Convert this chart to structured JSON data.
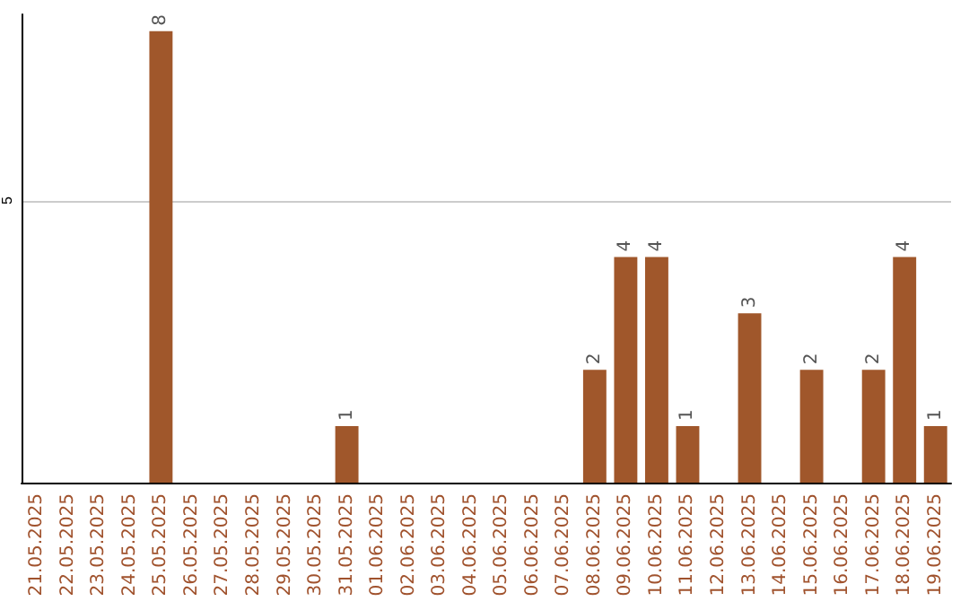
{
  "chart_data": {
    "type": "bar",
    "categories": [
      "21.05.2025",
      "22.05.2025",
      "23.05.2025",
      "24.05.2025",
      "25.05.2025",
      "26.05.2025",
      "27.05.2025",
      "28.05.2025",
      "29.05.2025",
      "30.05.2025",
      "31.05.2025",
      "01.06.2025",
      "02.06.2025",
      "03.06.2025",
      "04.06.2025",
      "05.06.2025",
      "06.06.2025",
      "07.06.2025",
      "08.06.2025",
      "09.06.2025",
      "10.06.2025",
      "11.06.2025",
      "12.06.2025",
      "13.06.2025",
      "14.06.2025",
      "15.06.2025",
      "16.06.2025",
      "17.06.2025",
      "18.06.2025",
      "19.06.2025"
    ],
    "values": [
      0,
      0,
      0,
      0,
      8,
      0,
      0,
      0,
      0,
      0,
      1,
      0,
      0,
      0,
      0,
      0,
      0,
      0,
      2,
      4,
      4,
      1,
      0,
      3,
      0,
      2,
      0,
      2,
      4,
      1
    ],
    "value_labels": [
      null,
      null,
      null,
      null,
      "8",
      null,
      null,
      null,
      null,
      null,
      "1",
      null,
      null,
      null,
      null,
      null,
      null,
      null,
      "2",
      "4",
      "4",
      "1",
      null,
      "3",
      null,
      "2",
      null,
      "2",
      "4",
      "1"
    ],
    "color": "#a0572b",
    "ylim": [
      0,
      8.3
    ],
    "yticks": [
      5
    ],
    "grid": "y"
  }
}
